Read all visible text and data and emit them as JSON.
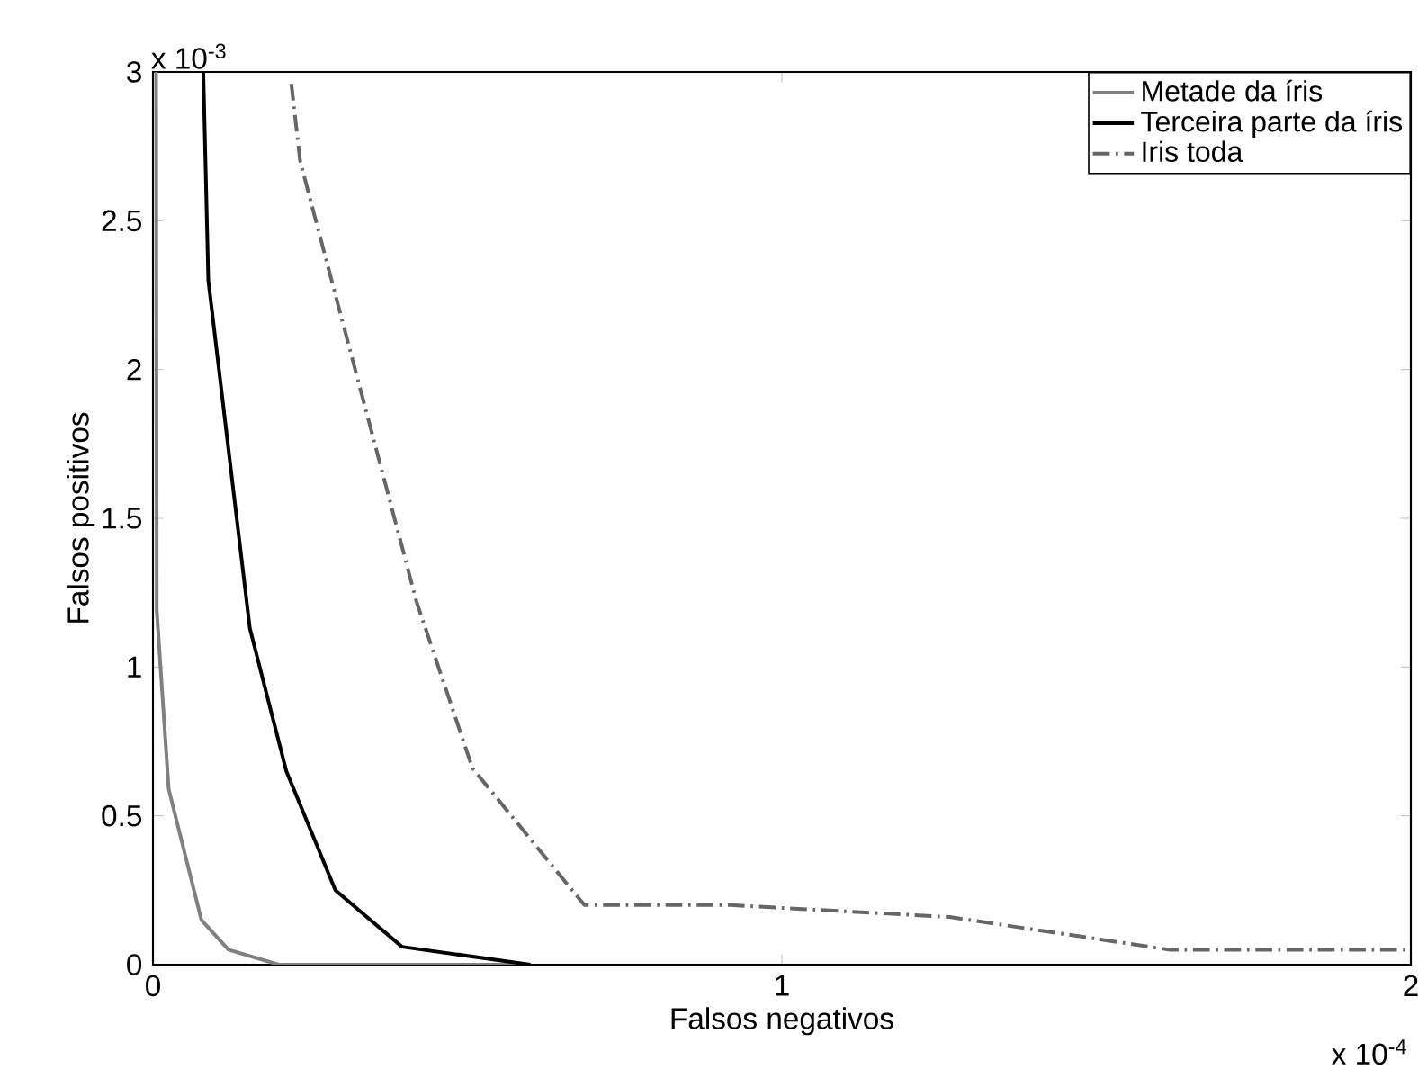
{
  "chart_data": {
    "type": "line",
    "xlabel": "Falsos negativos",
    "ylabel": "Falsos positivos",
    "annotations": [
      "x 10$^{-3}$",
      "x 10$^{-4}$"
    ],
    "xlim": [
      0,
      2
    ],
    "ylim": [
      0,
      3
    ],
    "xticks": [
      0,
      1,
      2
    ],
    "yticks": [
      0,
      0.5,
      1,
      1.5,
      2,
      2.5,
      3
    ],
    "legend": "top right",
    "grid": false,
    "marker": "none",
    "series": [
      {
        "name": "Metade da íris",
        "color": "#808080",
        "line_style": "solid",
        "x": [
          0.005,
          0.006,
          0.025,
          0.077,
          0.12,
          0.2,
          0.6
        ],
        "values": [
          3.0,
          1.19,
          0.59,
          0.15,
          0.05,
          0.0,
          0.0
        ]
      },
      {
        "name": "Terceira parte da íris",
        "color": "#000000",
        "line_style": "solid",
        "x": [
          0.08,
          0.088,
          0.154,
          0.212,
          0.29,
          0.396,
          0.6
        ],
        "values": [
          3.0,
          2.3,
          1.13,
          0.65,
          0.25,
          0.06,
          0.0
        ]
      },
      {
        "name": "Iris toda",
        "color": "#666666",
        "line_style": "dashdot",
        "x": [
          0.22,
          0.234,
          0.419,
          0.508,
          0.686,
          0.918,
          1.267,
          1.617,
          2.0
        ],
        "values": [
          2.96,
          2.7,
          1.22,
          0.66,
          0.2,
          0.2,
          0.16,
          0.05,
          0.05
        ]
      }
    ]
  }
}
